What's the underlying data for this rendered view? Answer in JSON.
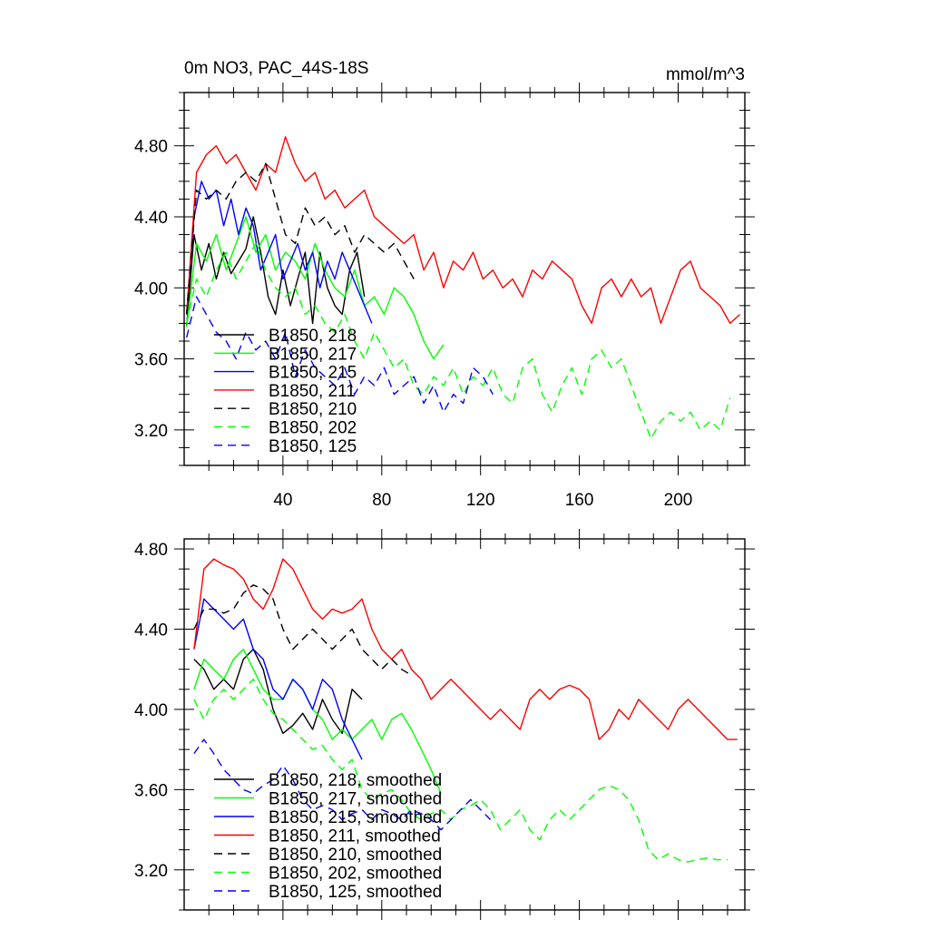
{
  "chart_data": [
    {
      "type": "line",
      "title": "0m NO3, PAC_44S-18S",
      "units": "mmol/m^3",
      "xlim": [
        0,
        227
      ],
      "ylim": [
        3.0,
        5.1
      ],
      "xticks": [
        40,
        80,
        120,
        160,
        200
      ],
      "yticks": [
        3.2,
        3.6,
        4.0,
        4.4,
        4.8
      ],
      "xtick_labels": [
        "40",
        "80",
        "120",
        "160",
        "200"
      ],
      "ytick_labels": [
        "3.20",
        "3.60",
        "4.00",
        "4.40",
        "4.80"
      ],
      "legend_position": "lower-left",
      "series": [
        {
          "name": "B1850, 218",
          "color": "#000000",
          "dash": false,
          "x": [
            1,
            4,
            7,
            10,
            13,
            16,
            19,
            22,
            25,
            28,
            31,
            34,
            37,
            40,
            43,
            46,
            49,
            52,
            55,
            58,
            61,
            64,
            67,
            70,
            73
          ],
          "y": [
            3.78,
            4.3,
            4.1,
            4.25,
            4.05,
            4.2,
            4.08,
            4.15,
            4.22,
            4.4,
            4.2,
            3.95,
            3.85,
            4.1,
            3.9,
            4.05,
            4.2,
            3.8,
            4.2,
            4.0,
            3.9,
            3.85,
            4.1,
            4.2,
            3.95
          ]
        },
        {
          "name": "B1850, 217",
          "color": "#00ff00",
          "dash": false,
          "x": [
            1,
            5,
            9,
            13,
            17,
            21,
            25,
            29,
            33,
            37,
            41,
            45,
            49,
            53,
            57,
            61,
            65,
            69,
            73,
            77,
            81,
            85,
            89,
            93,
            97,
            101,
            105
          ],
          "y": [
            3.78,
            4.25,
            4.15,
            4.3,
            4.1,
            4.25,
            4.4,
            4.2,
            4.3,
            4.1,
            4.2,
            4.15,
            4.05,
            4.25,
            4.1,
            4.0,
            3.95,
            4.1,
            3.9,
            3.95,
            3.85,
            4.0,
            3.95,
            3.85,
            3.7,
            3.6,
            3.68
          ]
        },
        {
          "name": "B1850, 215",
          "color": "#0000ff",
          "dash": false,
          "x": [
            1,
            4,
            7,
            10,
            13,
            16,
            19,
            22,
            25,
            28,
            31,
            34,
            37,
            40,
            43,
            46,
            49,
            52,
            55,
            58,
            61,
            64,
            67,
            70,
            73,
            76
          ],
          "y": [
            3.85,
            4.4,
            4.6,
            4.5,
            4.55,
            4.35,
            4.5,
            4.3,
            4.45,
            4.35,
            4.1,
            4.2,
            4.3,
            4.05,
            4.15,
            4.25,
            4.1,
            4.2,
            4.0,
            4.15,
            4.05,
            4.2,
            4.1,
            4.0,
            3.9,
            3.8
          ]
        },
        {
          "name": "B1850, 211",
          "color": "#ff0000",
          "dash": false,
          "x": [
            1,
            5,
            9,
            13,
            17,
            21,
            25,
            29,
            33,
            37,
            41,
            45,
            49,
            53,
            57,
            61,
            65,
            69,
            73,
            77,
            81,
            85,
            89,
            93,
            97,
            101,
            105,
            109,
            113,
            117,
            121,
            125,
            129,
            133,
            137,
            141,
            145,
            149,
            153,
            157,
            161,
            165,
            169,
            173,
            177,
            181,
            185,
            189,
            193,
            197,
            201,
            205,
            209,
            213,
            217,
            221,
            225
          ],
          "y": [
            3.85,
            4.65,
            4.75,
            4.8,
            4.7,
            4.75,
            4.65,
            4.55,
            4.7,
            4.65,
            4.85,
            4.7,
            4.6,
            4.65,
            4.5,
            4.55,
            4.45,
            4.5,
            4.55,
            4.4,
            4.35,
            4.3,
            4.25,
            4.3,
            4.1,
            4.2,
            4.0,
            4.15,
            4.1,
            4.2,
            4.05,
            4.1,
            4.0,
            4.05,
            3.95,
            4.1,
            4.05,
            4.15,
            4.1,
            4.05,
            3.9,
            3.8,
            4.0,
            4.05,
            3.95,
            4.05,
            3.95,
            4.0,
            3.8,
            3.95,
            4.1,
            4.15,
            4.0,
            3.95,
            3.9,
            3.8,
            3.85
          ]
        },
        {
          "name": "B1850, 210",
          "color": "#000000",
          "dash": true,
          "x": [
            1,
            5,
            9,
            13,
            17,
            21,
            25,
            29,
            33,
            37,
            41,
            45,
            49,
            53,
            57,
            61,
            65,
            69,
            73,
            77,
            81,
            85,
            89,
            93
          ],
          "y": [
            3.85,
            4.55,
            4.5,
            4.55,
            4.5,
            4.6,
            4.65,
            4.6,
            4.7,
            4.5,
            4.3,
            4.25,
            4.45,
            4.35,
            4.4,
            4.3,
            4.35,
            4.2,
            4.3,
            4.25,
            4.2,
            4.25,
            4.15,
            4.05
          ]
        },
        {
          "name": "B1850, 202",
          "color": "#00ff00",
          "dash": true,
          "x": [
            1,
            5,
            9,
            13,
            17,
            21,
            25,
            29,
            33,
            37,
            41,
            45,
            49,
            53,
            57,
            61,
            65,
            69,
            73,
            77,
            81,
            85,
            89,
            93,
            97,
            101,
            105,
            109,
            113,
            117,
            121,
            125,
            129,
            133,
            137,
            141,
            145,
            149,
            153,
            157,
            161,
            165,
            169,
            173,
            177,
            181,
            185,
            189,
            193,
            197,
            201,
            205,
            209,
            213,
            217,
            221
          ],
          "y": [
            3.8,
            4.05,
            3.95,
            4.1,
            4.2,
            4.05,
            4.15,
            4.25,
            4.1,
            4.0,
            3.95,
            4.0,
            3.85,
            3.9,
            3.8,
            3.75,
            3.85,
            3.7,
            3.6,
            3.75,
            3.65,
            3.55,
            3.6,
            3.45,
            3.4,
            3.5,
            3.45,
            3.55,
            3.4,
            3.5,
            3.45,
            3.55,
            3.4,
            3.35,
            3.55,
            3.6,
            3.4,
            3.3,
            3.45,
            3.55,
            3.4,
            3.6,
            3.65,
            3.55,
            3.6,
            3.45,
            3.3,
            3.15,
            3.25,
            3.3,
            3.25,
            3.3,
            3.2,
            3.25,
            3.2,
            3.38
          ]
        },
        {
          "name": "B1850, 125",
          "color": "#0000ff",
          "dash": true,
          "x": [
            1,
            5,
            9,
            13,
            17,
            21,
            25,
            29,
            33,
            37,
            41,
            45,
            49,
            53,
            57,
            61,
            65,
            69,
            73,
            77,
            81,
            85,
            89,
            93,
            97,
            101,
            105,
            109,
            113,
            117,
            121,
            125
          ],
          "y": [
            3.72,
            3.95,
            3.85,
            3.75,
            3.7,
            3.6,
            3.75,
            3.65,
            3.7,
            3.6,
            3.75,
            3.5,
            3.65,
            3.55,
            3.5,
            3.45,
            3.55,
            3.4,
            3.5,
            3.45,
            3.55,
            3.4,
            3.45,
            3.5,
            3.35,
            3.45,
            3.3,
            3.4,
            3.35,
            3.55,
            3.5,
            3.4
          ]
        }
      ]
    },
    {
      "type": "line",
      "xlim": [
        0,
        227
      ],
      "ylim": [
        3.0,
        4.85
      ],
      "yticks": [
        3.2,
        3.6,
        4.0,
        4.4,
        4.8
      ],
      "ytick_labels": [
        "3.20",
        "3.60",
        "4.00",
        "4.40",
        "4.80"
      ],
      "legend_position": "lower-left",
      "series": [
        {
          "name": "B1850, 218, smoothed",
          "color": "#000000",
          "dash": false,
          "x": [
            4,
            8,
            12,
            16,
            20,
            24,
            28,
            32,
            36,
            40,
            44,
            48,
            52,
            56,
            60,
            64,
            68,
            72
          ],
          "y": [
            4.25,
            4.2,
            4.1,
            4.15,
            4.1,
            4.25,
            4.3,
            4.2,
            4.0,
            3.88,
            3.92,
            3.98,
            3.9,
            4.05,
            3.95,
            3.88,
            4.1,
            4.05
          ]
        },
        {
          "name": "B1850, 217, smoothed",
          "color": "#00ff00",
          "dash": false,
          "x": [
            4,
            8,
            12,
            16,
            20,
            24,
            28,
            32,
            36,
            40,
            44,
            48,
            52,
            56,
            60,
            64,
            68,
            72,
            76,
            80,
            84,
            88,
            92,
            96,
            100,
            104
          ],
          "y": [
            4.1,
            4.25,
            4.2,
            4.15,
            4.25,
            4.3,
            4.2,
            4.1,
            4.05,
            4.05,
            4.15,
            4.1,
            4.0,
            3.95,
            3.85,
            3.9,
            3.85,
            3.9,
            3.95,
            3.85,
            3.95,
            3.98,
            3.9,
            3.8,
            3.7,
            3.58
          ]
        },
        {
          "name": "B1850, 215, smoothed",
          "color": "#0000ff",
          "dash": false,
          "x": [
            4,
            8,
            12,
            16,
            20,
            24,
            28,
            32,
            36,
            40,
            44,
            48,
            52,
            56,
            60,
            64,
            68,
            72
          ],
          "y": [
            4.3,
            4.55,
            4.5,
            4.45,
            4.4,
            4.45,
            4.3,
            4.25,
            4.1,
            4.05,
            4.15,
            4.1,
            4.0,
            4.15,
            4.1,
            3.95,
            3.85,
            3.75
          ]
        },
        {
          "name": "B1850, 211, smoothed",
          "color": "#ff0000",
          "dash": false,
          "x": [
            4,
            8,
            12,
            16,
            20,
            24,
            28,
            32,
            36,
            40,
            44,
            48,
            52,
            56,
            60,
            64,
            68,
            72,
            76,
            80,
            84,
            88,
            92,
            96,
            100,
            104,
            108,
            112,
            116,
            120,
            124,
            128,
            132,
            136,
            140,
            144,
            148,
            152,
            156,
            160,
            164,
            168,
            172,
            176,
            180,
            184,
            188,
            192,
            196,
            200,
            204,
            208,
            212,
            216,
            220,
            224
          ],
          "y": [
            4.3,
            4.7,
            4.75,
            4.72,
            4.7,
            4.65,
            4.55,
            4.5,
            4.6,
            4.75,
            4.7,
            4.6,
            4.5,
            4.45,
            4.5,
            4.48,
            4.5,
            4.55,
            4.4,
            4.3,
            4.25,
            4.3,
            4.2,
            4.15,
            4.05,
            4.1,
            4.15,
            4.1,
            4.05,
            4.0,
            3.95,
            4.0,
            3.95,
            3.9,
            4.05,
            4.1,
            4.05,
            4.1,
            4.12,
            4.1,
            4.05,
            3.85,
            3.9,
            4.0,
            3.95,
            4.05,
            4.0,
            3.95,
            3.9,
            4.0,
            4.05,
            4.0,
            3.95,
            3.9,
            3.85,
            3.85
          ]
        },
        {
          "name": "B1850, 210, smoothed",
          "color": "#000000",
          "dash": true,
          "x": [
            4,
            8,
            12,
            16,
            20,
            24,
            28,
            32,
            36,
            40,
            44,
            48,
            52,
            56,
            60,
            64,
            68,
            72,
            76,
            80,
            84,
            88,
            92
          ],
          "y": [
            4.4,
            4.5,
            4.5,
            4.48,
            4.5,
            4.58,
            4.62,
            4.6,
            4.55,
            4.4,
            4.3,
            4.35,
            4.4,
            4.35,
            4.3,
            4.35,
            4.4,
            4.3,
            4.25,
            4.2,
            4.25,
            4.2,
            4.17
          ]
        },
        {
          "name": "B1850, 202, smoothed",
          "color": "#00ff00",
          "dash": true,
          "x": [
            4,
            8,
            12,
            16,
            20,
            24,
            28,
            32,
            36,
            40,
            44,
            48,
            52,
            56,
            60,
            64,
            68,
            72,
            76,
            80,
            84,
            88,
            92,
            96,
            100,
            104,
            108,
            112,
            116,
            120,
            124,
            128,
            132,
            136,
            140,
            144,
            148,
            152,
            156,
            160,
            164,
            168,
            172,
            176,
            180,
            184,
            188,
            192,
            196,
            200,
            204,
            208,
            212,
            216,
            220
          ],
          "y": [
            4.05,
            3.95,
            4.05,
            4.1,
            4.05,
            4.1,
            4.15,
            4.05,
            3.98,
            3.95,
            3.9,
            3.85,
            3.8,
            3.82,
            3.75,
            3.7,
            3.75,
            3.6,
            3.55,
            3.58,
            3.6,
            3.55,
            3.48,
            3.45,
            3.48,
            3.5,
            3.45,
            3.5,
            3.52,
            3.55,
            3.5,
            3.4,
            3.45,
            3.5,
            3.4,
            3.35,
            3.45,
            3.5,
            3.45,
            3.5,
            3.55,
            3.6,
            3.62,
            3.6,
            3.55,
            3.45,
            3.3,
            3.25,
            3.28,
            3.25,
            3.24,
            3.25,
            3.26,
            3.25,
            3.25
          ]
        },
        {
          "name": "B1850, 125, smoothed",
          "color": "#0000ff",
          "dash": true,
          "x": [
            4,
            8,
            12,
            16,
            20,
            24,
            28,
            32,
            36,
            40,
            44,
            48,
            52,
            56,
            60,
            64,
            68,
            72,
            76,
            80,
            84,
            88,
            92,
            96,
            100,
            104,
            108,
            112,
            116,
            120,
            124
          ],
          "y": [
            3.78,
            3.85,
            3.78,
            3.7,
            3.65,
            3.6,
            3.58,
            3.62,
            3.65,
            3.72,
            3.65,
            3.55,
            3.5,
            3.52,
            3.5,
            3.45,
            3.48,
            3.5,
            3.45,
            3.5,
            3.48,
            3.45,
            3.5,
            3.48,
            3.45,
            3.4,
            3.45,
            3.5,
            3.55,
            3.5,
            3.45
          ]
        }
      ]
    }
  ]
}
